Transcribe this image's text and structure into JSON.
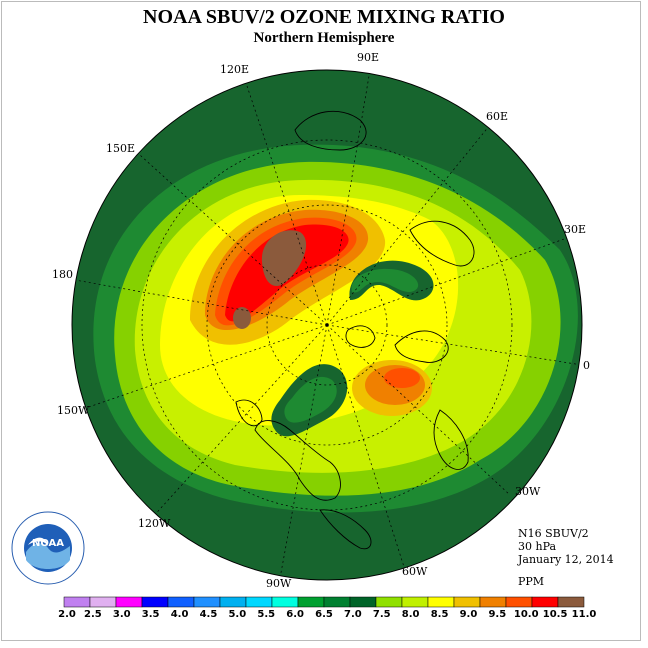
{
  "title": "NOAA SBUV/2 OZONE MIXING RATIO",
  "subtitle": "Northern Hemisphere",
  "longitude_labels": [
    {
      "label": "90E"
    },
    {
      "label": "60E"
    },
    {
      "label": "120E"
    },
    {
      "label": "150E"
    },
    {
      "label": "30E"
    },
    {
      "label": "180"
    },
    {
      "label": "0"
    },
    {
      "label": "150W"
    },
    {
      "label": "30W"
    },
    {
      "label": "120W"
    },
    {
      "label": "60W"
    },
    {
      "label": "90W"
    }
  ],
  "info": {
    "instrument": "N16 SBUV/2",
    "level": "30 hPa",
    "date": "January 12, 2014",
    "units": "PPM"
  },
  "logo": {
    "text": "NOAA",
    "ring_text": "NATIONAL OCEANIC AND ATMOSPHERIC ADMINISTRATION U.S. DEPARTMENT OF COMMERCE"
  },
  "colorbar": {
    "ticks": [
      "2.0",
      "2.5",
      "3.0",
      "3.5",
      "4.0",
      "4.5",
      "5.0",
      "5.5",
      "6.0",
      "6.5",
      "7.0",
      "7.5",
      "8.0",
      "8.5",
      "9.0",
      "9.5",
      "10.0",
      "10.5",
      "11.0"
    ],
    "colors": [
      "#c080f0",
      "#e0b0f0",
      "#ff00ff",
      "#0000ff",
      "#1060ff",
      "#2090ff",
      "#00b0f0",
      "#00d8ff",
      "#00ffe0",
      "#00a030",
      "#008030",
      "#006428",
      "#90e000",
      "#c0f000",
      "#ffff00",
      "#f0c000",
      "#f08000",
      "#ff5000",
      "#ff0000",
      "#8b5a3c"
    ]
  },
  "map_fill_colors": {
    "dark_green": "#17652e",
    "green": "#1e8a32",
    "light_green": "#86d100",
    "yellow_green": "#c8f000",
    "yellow": "#ffff00",
    "orange_yellow": "#f0c000",
    "orange": "#f08000",
    "red_orange": "#ff5000",
    "red": "#ff0000",
    "brown": "#8b5a3c"
  }
}
